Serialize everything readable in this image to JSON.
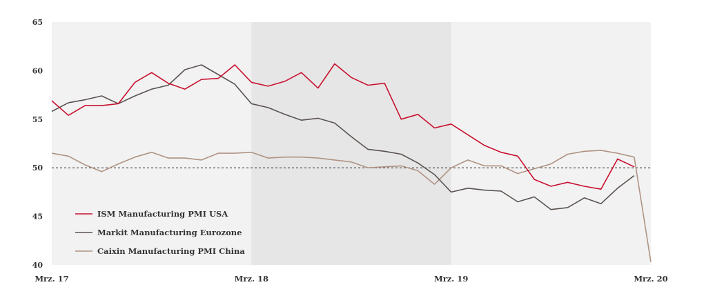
{
  "chart_data": {
    "type": "line",
    "title": "",
    "xlabel": "",
    "ylabel": "",
    "ylim": [
      40,
      65
    ],
    "yticks": [
      40,
      45,
      50,
      55,
      60,
      65
    ],
    "xlim": [
      0,
      36
    ],
    "xticks": [
      {
        "x": 0,
        "label": "Mrz. 17"
      },
      {
        "x": 12,
        "label": "Mrz. 18"
      },
      {
        "x": 24,
        "label": "Mrz. 19"
      },
      {
        "x": 36,
        "label": "Mrz. 20"
      }
    ],
    "shaded_band": {
      "x": [
        12,
        24
      ],
      "color": "#e6e6e6"
    },
    "background_color": "#f2f2f2",
    "reference_line": {
      "y": 50,
      "style": "dashed",
      "color": "#222222"
    },
    "legend_position": "lower-left",
    "series": [
      {
        "name": "ISM Manufacturing PMI USA",
        "color": "#c8102e",
        "values": [
          56.9,
          55.4,
          56.4,
          56.4,
          56.6,
          58.8,
          59.8,
          58.7,
          58.1,
          59.1,
          59.2,
          60.6,
          58.8,
          58.4,
          58.9,
          59.8,
          58.2,
          60.7,
          59.3,
          58.5,
          58.7,
          55.0,
          55.5,
          54.1,
          54.5,
          53.4,
          52.3,
          51.6,
          51.2,
          48.8,
          48.1,
          48.5,
          48.1,
          47.8,
          50.9,
          50.1
        ],
        "x_start": 0
      },
      {
        "name": "Markit Manufacturing Eurozone",
        "color": "#5a5350",
        "values": [
          55.8,
          56.7,
          57.0,
          57.4,
          56.6,
          57.4,
          58.1,
          58.5,
          60.1,
          60.6,
          59.6,
          58.6,
          56.6,
          56.2,
          55.5,
          54.9,
          55.1,
          54.6,
          53.2,
          51.9,
          51.7,
          51.4,
          50.5,
          49.3,
          47.5,
          47.9,
          47.7,
          47.6,
          46.5,
          47.0,
          45.7,
          45.9,
          46.9,
          46.3,
          47.9,
          49.2
        ],
        "x_start": 0
      },
      {
        "name": "Caixin Manufacturing PMI China",
        "color": "#b09382",
        "values": [
          51.5,
          51.2,
          50.3,
          49.6,
          50.4,
          51.1,
          51.6,
          51.0,
          51.0,
          50.8,
          51.5,
          51.5,
          51.6,
          51.0,
          51.1,
          51.1,
          51.0,
          50.8,
          50.6,
          50.0,
          50.1,
          50.2,
          49.7,
          48.3,
          50.0,
          50.8,
          50.2,
          50.2,
          49.4,
          49.9,
          50.4,
          51.4,
          51.7,
          51.8,
          51.5,
          51.1,
          40.3
        ],
        "x_start": 0
      }
    ]
  }
}
